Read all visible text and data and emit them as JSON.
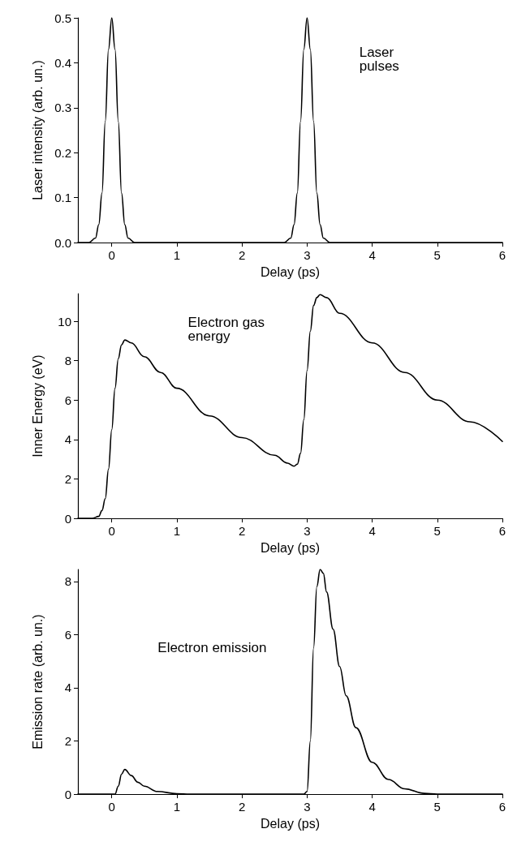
{
  "chart_data": [
    {
      "type": "line",
      "xlabel": "Delay (ps)",
      "ylabel": "Laser intensity (arb. un.)",
      "annotations": [
        "Laser pulses"
      ],
      "xlim": [
        -0.52,
        6
      ],
      "xticks": [
        0,
        1,
        2,
        3,
        4,
        5,
        6
      ],
      "ylim": [
        0,
        0.5
      ],
      "yticks": [
        {
          "value": 0,
          "label": "0.0"
        },
        {
          "value": 0.1,
          "label": "0.1"
        },
        {
          "value": 0.2,
          "label": "0.2"
        },
        {
          "value": 0.3,
          "label": "0.3"
        },
        {
          "value": 0.4,
          "label": "0.4"
        },
        {
          "value": 0.5,
          "label": "0.5"
        }
      ],
      "grid": false,
      "marker": "none",
      "line_style": "solid",
      "series": [
        {
          "color": "#000000",
          "x": [
            -0.52,
            -0.35,
            -0.25,
            -0.2,
            -0.15,
            -0.1,
            -0.05,
            0,
            0.05,
            0.1,
            0.15,
            0.2,
            0.25,
            0.35,
            2.65,
            2.75,
            2.8,
            2.85,
            2.9,
            2.95,
            3,
            3.05,
            3.1,
            3.15,
            3.2,
            3.25,
            3.35,
            6
          ],
          "values": [
            0,
            0,
            0.01,
            0.04,
            0.11,
            0.27,
            0.43,
            0.5,
            0.43,
            0.27,
            0.11,
            0.04,
            0.01,
            0,
            0,
            0.01,
            0.04,
            0.11,
            0.27,
            0.43,
            0.5,
            0.43,
            0.27,
            0.11,
            0.04,
            0.01,
            0,
            0
          ]
        }
      ]
    },
    {
      "type": "line",
      "xlabel": "Delay (ps)",
      "ylabel": "Inner Energy (eV)",
      "annotations": [
        "Electron gas energy"
      ],
      "xlim": [
        -0.52,
        6
      ],
      "xticks": [
        0,
        1,
        2,
        3,
        4,
        5,
        6
      ],
      "ylim": [
        0,
        11.4
      ],
      "yticks": [
        0,
        2,
        4,
        6,
        8,
        10
      ],
      "grid": false,
      "marker": "none",
      "line_style": "solid",
      "series": [
        {
          "color": "#000000",
          "x": [
            -0.52,
            -0.3,
            -0.2,
            -0.15,
            -0.1,
            -0.05,
            0,
            0.05,
            0.1,
            0.15,
            0.2,
            0.3,
            0.5,
            0.75,
            1,
            1.5,
            2,
            2.5,
            2.7,
            2.8,
            2.85,
            2.9,
            2.95,
            3,
            3.05,
            3.1,
            3.15,
            3.2,
            3.3,
            3.5,
            4,
            4.5,
            5,
            5.5,
            6
          ],
          "values": [
            0,
            0,
            0.1,
            0.4,
            1,
            2.5,
            4.5,
            6.6,
            8.1,
            8.8,
            9.05,
            8.9,
            8.2,
            7.4,
            6.6,
            5.2,
            4.1,
            3.2,
            2.8,
            2.65,
            2.75,
            3.3,
            5,
            7.5,
            9.5,
            10.8,
            11.2,
            11.35,
            11.2,
            10.4,
            8.9,
            7.4,
            6,
            4.9,
            3.9
          ]
        }
      ]
    },
    {
      "type": "line",
      "xlabel": "Delay (ps)",
      "ylabel": "Emission rate (arb. un.)",
      "annotations": [
        "Electron emission"
      ],
      "xlim": [
        -0.52,
        6
      ],
      "xticks": [
        0,
        1,
        2,
        3,
        4,
        5,
        6
      ],
      "ylim": [
        0,
        8.45
      ],
      "yticks": [
        0,
        2,
        4,
        6,
        8
      ],
      "grid": false,
      "marker": "none",
      "line_style": "solid",
      "series": [
        {
          "color": "#000000",
          "x": [
            -0.52,
            0.05,
            0.1,
            0.15,
            0.2,
            0.3,
            0.4,
            0.5,
            0.7,
            1,
            1.2,
            2.95,
            3,
            3.05,
            3.1,
            3.15,
            3.2,
            3.25,
            3.3,
            3.4,
            3.5,
            3.6,
            3.75,
            4,
            4.25,
            4.5,
            4.8,
            5,
            6
          ],
          "values": [
            0,
            0,
            0.3,
            0.75,
            0.93,
            0.7,
            0.45,
            0.3,
            0.1,
            0.02,
            0,
            0,
            0.1,
            2,
            5.5,
            7.8,
            8.45,
            8.3,
            7.6,
            6.2,
            4.8,
            3.7,
            2.5,
            1.2,
            0.55,
            0.2,
            0.03,
            0,
            0
          ]
        }
      ]
    }
  ]
}
